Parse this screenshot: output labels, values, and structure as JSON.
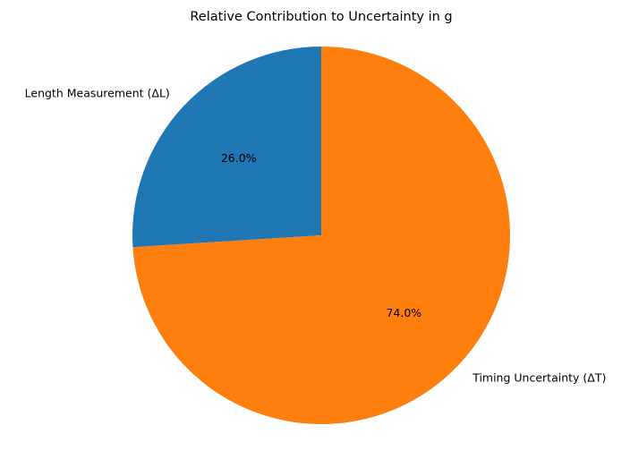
{
  "chart_data": {
    "type": "pie",
    "title": "Relative Contribution to Uncertainty in g",
    "legend": "none",
    "slices": [
      {
        "label": "Length Measurement (ΔL)",
        "value": 26.0,
        "pct_label": "26.0%",
        "color": "#1f77b4"
      },
      {
        "label": "Timing Uncertainty (ΔT)",
        "value": 74.0,
        "pct_label": "74.0%",
        "color": "#ff7f0e"
      }
    ]
  }
}
